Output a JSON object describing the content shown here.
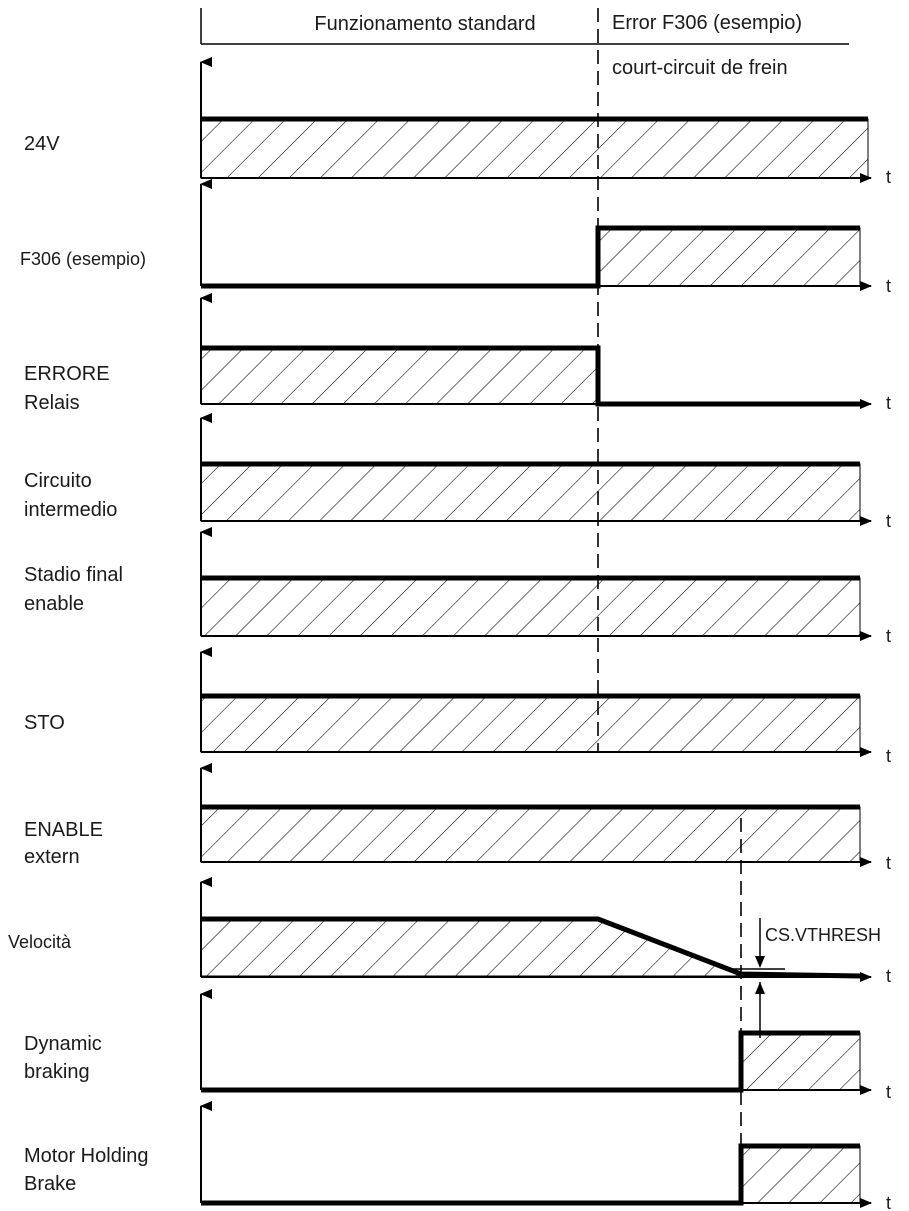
{
  "header": {
    "left_label": "Funzionamento standard",
    "right_label": "Error F306 (esempio)",
    "right_sublabel": "court-circuit de frein"
  },
  "time_label": "t",
  "threshold_label": "CS.VTHRESH",
  "signals": [
    {
      "id": "24v",
      "label_lines": [
        "24V"
      ],
      "states": "high"
    },
    {
      "id": "f306",
      "label_lines": [
        "F306 (esempio)"
      ],
      "states": "low-then-high-at-error"
    },
    {
      "id": "errore-relais",
      "label_lines": [
        "ERRORE",
        "Relais"
      ],
      "states": "high-then-low-at-error"
    },
    {
      "id": "circuito-intermedio",
      "label_lines": [
        "Circuito",
        "intermedio"
      ],
      "states": "high"
    },
    {
      "id": "stadio-final-enable",
      "label_lines": [
        "Stadio final",
        "enable"
      ],
      "states": "high"
    },
    {
      "id": "sto",
      "label_lines": [
        "STO"
      ],
      "states": "high"
    },
    {
      "id": "enable-extern",
      "label_lines": [
        "ENABLE",
        "extern"
      ],
      "states": "high"
    },
    {
      "id": "velocita",
      "label_lines": [
        "Velocità"
      ],
      "states": "high-then-ramp-down"
    },
    {
      "id": "dynamic-braking",
      "label_lines": [
        "Dynamic",
        "braking"
      ],
      "states": "low-then-high-at-threshold"
    },
    {
      "id": "motor-holding-brake",
      "label_lines": [
        "Motor Holding",
        "Brake"
      ],
      "states": "low-then-high-at-threshold"
    }
  ]
}
